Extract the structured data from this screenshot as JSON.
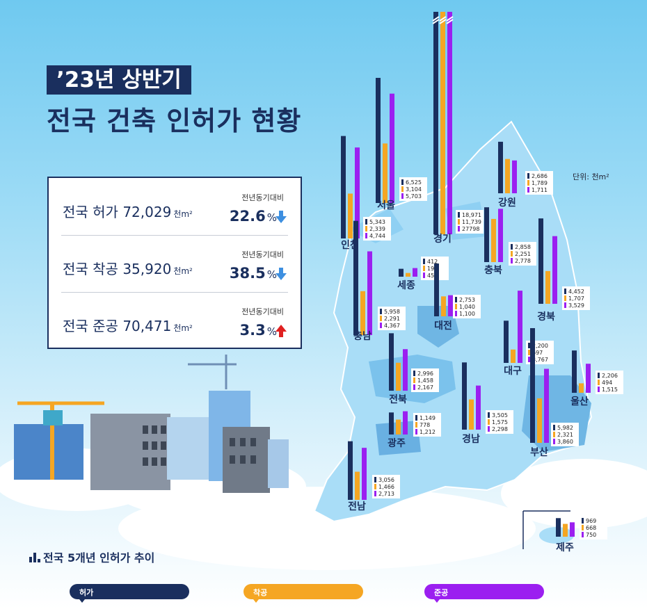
{
  "title": {
    "tag": "’23년 상반기",
    "main": "전국 건축 인허가 현황"
  },
  "unit_label": "단위: 천m²",
  "summary": [
    {
      "label": "전국 허가",
      "value": "72,029",
      "unit": "천m²",
      "yoy_label": "전년동기대비",
      "pct": "22.6",
      "pct_unit": "%",
      "direction": "down"
    },
    {
      "label": "전국 착공",
      "value": "35,920",
      "unit": "천m²",
      "yoy_label": "전년동기대비",
      "pct": "38.5",
      "pct_unit": "%",
      "direction": "down"
    },
    {
      "label": "전국 준공",
      "value": "70,471",
      "unit": "천m²",
      "yoy_label": "전년동기대비",
      "pct": "3.3",
      "pct_unit": "%",
      "direction": "up"
    }
  ],
  "trend_label": "전국 5개년 인허가 추이",
  "legend": [
    {
      "label": "허가",
      "color": "#1a2f5e"
    },
    {
      "label": "착공",
      "color": "#f5a623"
    },
    {
      "label": "준공",
      "color": "#9b1ff0"
    }
  ],
  "chart_data": {
    "type": "bar",
    "series_names": [
      "허가",
      "착공",
      "준공"
    ],
    "unit": "천m²",
    "regions": [
      {
        "name": "서울",
        "values": [
          6525,
          3104,
          5703
        ],
        "labels": [
          "6,525",
          "3,104",
          "5,703"
        ]
      },
      {
        "name": "인천",
        "values": [
          5343,
          2339,
          4744
        ],
        "labels": [
          "5,343",
          "2,339",
          "4,744"
        ]
      },
      {
        "name": "경기",
        "values": [
          18971,
          11739,
          27798
        ],
        "labels": [
          "18,971",
          "11,739",
          "27798"
        ],
        "broken": true
      },
      {
        "name": "강원",
        "values": [
          2686,
          1789,
          1711
        ],
        "labels": [
          "2,686",
          "1,789",
          "1,711"
        ]
      },
      {
        "name": "충북",
        "values": [
          2858,
          2251,
          2778
        ],
        "labels": [
          "2,858",
          "2,251",
          "2,778"
        ]
      },
      {
        "name": "세종",
        "values": [
          412,
          194,
          450
        ],
        "labels": [
          "412",
          "194",
          "450"
        ]
      },
      {
        "name": "충남",
        "values": [
          5958,
          2291,
          4367
        ],
        "labels": [
          "5,958",
          "2,291",
          "4,367"
        ]
      },
      {
        "name": "대전",
        "values": [
          2753,
          1040,
          1100
        ],
        "labels": [
          "2,753",
          "1,040",
          "1,100"
        ]
      },
      {
        "name": "경북",
        "values": [
          4452,
          1707,
          3529
        ],
        "labels": [
          "4,452",
          "1,707",
          "3,529"
        ]
      },
      {
        "name": "대구",
        "values": [
          2200,
          697,
          3767
        ],
        "labels": [
          "2,200",
          "697",
          "3,767"
        ]
      },
      {
        "name": "전북",
        "values": [
          2996,
          1458,
          2167
        ],
        "labels": [
          "2,996",
          "1,458",
          "2,167"
        ]
      },
      {
        "name": "울산",
        "values": [
          2206,
          494,
          1515
        ],
        "labels": [
          "2,206",
          "494",
          "1,515"
        ]
      },
      {
        "name": "광주",
        "values": [
          1149,
          778,
          1212
        ],
        "labels": [
          "1,149",
          "778",
          "1,212"
        ]
      },
      {
        "name": "경남",
        "values": [
          3505,
          1575,
          2298
        ],
        "labels": [
          "3,505",
          "1,575",
          "2,298"
        ]
      },
      {
        "name": "부산",
        "values": [
          5982,
          2321,
          3860
        ],
        "labels": [
          "5,982",
          "2,321",
          "3,860"
        ]
      },
      {
        "name": "전남",
        "values": [
          3056,
          1466,
          2713
        ],
        "labels": [
          "3,056",
          "1,466",
          "2,713"
        ]
      },
      {
        "name": "제주",
        "values": [
          969,
          668,
          750
        ],
        "labels": [
          "969",
          "668",
          "750"
        ]
      }
    ]
  }
}
